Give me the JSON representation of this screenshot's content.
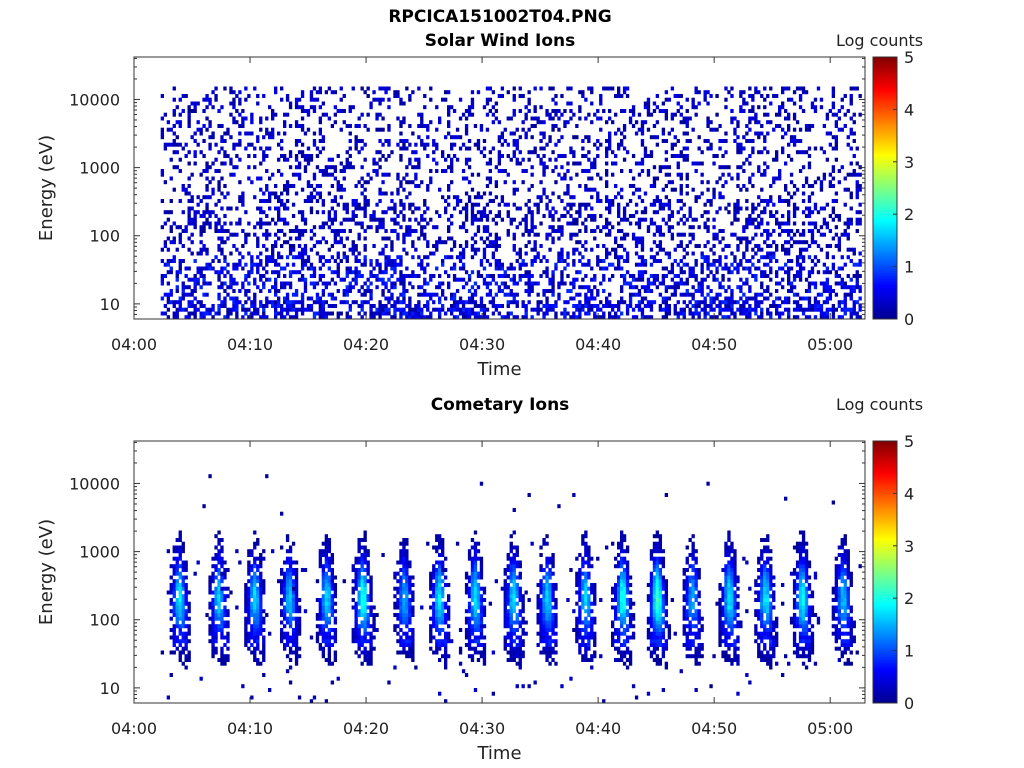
{
  "figure_title": "RPCICA151002T04.PNG",
  "colors": {
    "colormap": [
      "#00008f",
      "#0000ff",
      "#0080ff",
      "#00ffff",
      "#80ff80",
      "#ffff00",
      "#ff8000",
      "#ff0000",
      "#800000"
    ]
  },
  "chart_data": [
    {
      "type": "heatmap",
      "title": "Solar Wind Ions",
      "xlabel": "Time",
      "ylabel": "Energy (eV)",
      "x_ticks": [
        "04:00",
        "04:10",
        "04:20",
        "04:30",
        "04:40",
        "04:50",
        "05:00"
      ],
      "y_ticks": [
        "10",
        "100",
        "1000",
        "10000"
      ],
      "y_scale": "log",
      "ylim": [
        6,
        42000
      ],
      "xlim_minutes": [
        0,
        63
      ],
      "data_start_minute": 2.3,
      "colorbar": {
        "label": "Log counts",
        "ticks": [
          "0",
          "1",
          "2",
          "3",
          "4",
          "5"
        ],
        "range": [
          0,
          5
        ]
      },
      "pattern": "sparse low counts (log ~0-1) spread across all energies 6 eV - 15 keV",
      "grid": false
    },
    {
      "type": "heatmap",
      "title": "Cometary Ions",
      "xlabel": "Time",
      "ylabel": "Energy (eV)",
      "x_ticks": [
        "04:00",
        "04:10",
        "04:20",
        "04:30",
        "04:40",
        "04:50",
        "05:00"
      ],
      "y_ticks": [
        "10",
        "100",
        "1000",
        "10000"
      ],
      "y_scale": "log",
      "ylim": [
        6,
        42000
      ],
      "xlim_minutes": [
        0,
        63
      ],
      "data_start_minute": 2.3,
      "colorbar": {
        "label": "Log counts",
        "ticks": [
          "0",
          "1",
          "2",
          "3",
          "4",
          "5"
        ],
        "range": [
          0,
          5
        ]
      },
      "burst_center_minutes": [
        3.8,
        7.2,
        10.3,
        13.3,
        16.5,
        19.6,
        23.2,
        26.2,
        29.3,
        32.6,
        35.5,
        38.8,
        42.0,
        45.0,
        48.0,
        51.2,
        54.3,
        57.5,
        61.0
      ],
      "burst_peak_log_counts": [
        1.8,
        1.7,
        1.7,
        1.6,
        1.7,
        2.0,
        1.5,
        1.8,
        1.8,
        1.8,
        1.7,
        1.7,
        2.0,
        2.2,
        1.5,
        1.8,
        1.8,
        1.9,
        1.6
      ],
      "burst_energy_range_eV": [
        6,
        1000
      ],
      "pattern": "periodic ion bursts (~3 min period) centred near 40-150 eV",
      "grid": false
    }
  ]
}
